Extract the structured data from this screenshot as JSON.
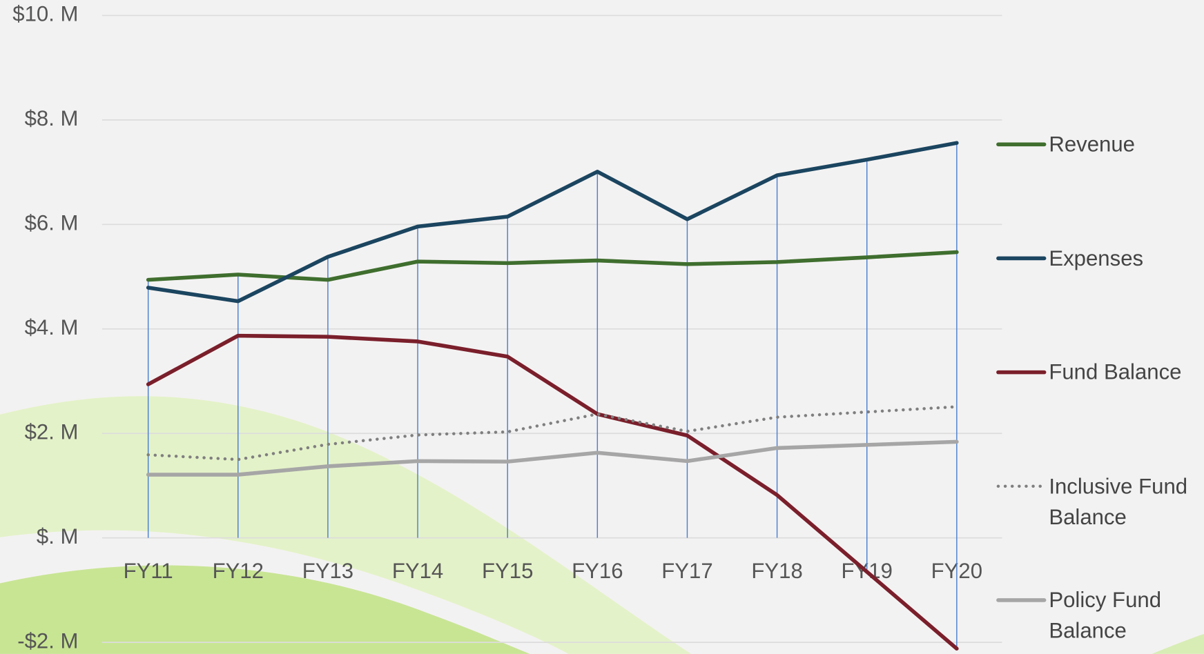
{
  "chart_data": {
    "type": "line",
    "categories": [
      "FY11",
      "FY12",
      "FY13",
      "FY14",
      "FY15",
      "FY16",
      "FY17",
      "FY18",
      "FY19",
      "FY20"
    ],
    "series": [
      {
        "name": "Revenue",
        "color": "#3f6e2e",
        "values": [
          4.94,
          5.04,
          4.94,
          5.29,
          5.26,
          5.31,
          5.24,
          5.28,
          5.37,
          5.47
        ]
      },
      {
        "name": "Expenses",
        "color": "#1b4560",
        "values": [
          4.79,
          4.53,
          5.38,
          5.96,
          6.15,
          7.01,
          6.1,
          6.94,
          7.24,
          7.56
        ]
      },
      {
        "name": "Fund Balance",
        "color": "#7a1f2b",
        "values": [
          2.94,
          3.87,
          3.85,
          3.76,
          3.47,
          2.37,
          1.96,
          0.82,
          -0.65,
          -2.12
        ]
      },
      {
        "name": "Inclusive Fund Balance",
        "color": "#7f7f7f",
        "line_style": "dotted",
        "values": [
          1.59,
          1.5,
          1.79,
          1.97,
          2.03,
          2.37,
          2.04,
          2.31,
          2.41,
          2.51
        ]
      },
      {
        "name": "Policy Fund Balance",
        "color": "#a6a6a6",
        "values": [
          1.21,
          1.21,
          1.37,
          1.47,
          1.46,
          1.63,
          1.47,
          1.72,
          1.78,
          1.84
        ]
      }
    ],
    "ylim": [
      -2,
      10
    ],
    "yticks": [
      {
        "value": -2,
        "label": "-$2. M"
      },
      {
        "value": 0,
        "label": "$. M"
      },
      {
        "value": 2,
        "label": "$2. M"
      },
      {
        "value": 4,
        "label": "$4. M"
      },
      {
        "value": 6,
        "label": "$6. M"
      },
      {
        "value": 8,
        "label": "$8. M"
      },
      {
        "value": 10,
        "label": "$10. M"
      }
    ],
    "grid": true,
    "drop_lines": true,
    "legend": "right"
  }
}
